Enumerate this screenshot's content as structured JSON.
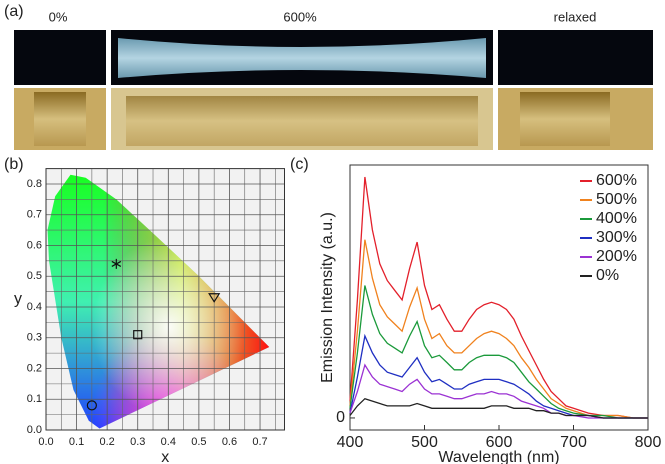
{
  "photos": {
    "label": "(a)",
    "captions": [
      "0%",
      "600%",
      "relaxed"
    ]
  },
  "chart_data": [
    {
      "type": "scatter",
      "panel_label": "(b)",
      "x_label": "x",
      "y_label": "y",
      "x": [
        0.15,
        0.23,
        0.3,
        0.55
      ],
      "values": [
        0.08,
        0.54,
        0.31,
        0.43
      ],
      "markers": [
        "circle",
        "star",
        "square",
        "triangle"
      ],
      "color": "#111111",
      "xlim": [
        0,
        0.78
      ],
      "ylim": [
        0,
        0.85
      ],
      "xticks": [
        {
          "value": 0,
          "label": "0.0"
        },
        0.1,
        0.2,
        0.3,
        0.4,
        0.5,
        0.6,
        0.7
      ],
      "yticks": [
        {
          "value": 0,
          "label": "0.0"
        },
        0.1,
        0.2,
        0.3,
        0.4,
        0.5,
        0.6,
        0.7,
        0.8
      ],
      "grid": true
    },
    {
      "type": "line",
      "panel_label": "(c)",
      "x_label": "Wavelength (nm)",
      "y_label": "Emission Intensity (a.u.)",
      "x": [
        400,
        410,
        420,
        430,
        440,
        450,
        460,
        470,
        480,
        490,
        500,
        510,
        520,
        530,
        540,
        550,
        560,
        570,
        580,
        590,
        600,
        610,
        620,
        630,
        640,
        650,
        660,
        670,
        680,
        690,
        700,
        720,
        740,
        760,
        780,
        800
      ],
      "series": [
        {
          "name": "600%",
          "color": "#e3202b",
          "values": [
            0.07,
            0.49,
            1.0,
            0.78,
            0.64,
            0.57,
            0.53,
            0.49,
            0.62,
            0.73,
            0.55,
            0.45,
            0.47,
            0.41,
            0.36,
            0.36,
            0.41,
            0.45,
            0.47,
            0.48,
            0.47,
            0.45,
            0.41,
            0.34,
            0.28,
            0.22,
            0.16,
            0.11,
            0.08,
            0.05,
            0.04,
            0.02,
            0.01,
            0.01,
            0,
            0
          ]
        },
        {
          "name": "500%",
          "color": "#f0821e",
          "values": [
            0.05,
            0.36,
            0.74,
            0.58,
            0.47,
            0.42,
            0.39,
            0.36,
            0.46,
            0.54,
            0.41,
            0.33,
            0.35,
            0.3,
            0.27,
            0.27,
            0.3,
            0.33,
            0.35,
            0.36,
            0.35,
            0.33,
            0.3,
            0.25,
            0.21,
            0.16,
            0.12,
            0.08,
            0.06,
            0.04,
            0.03,
            0.01,
            0.01,
            0.01,
            0,
            0
          ]
        },
        {
          "name": "400%",
          "color": "#1b9a3b",
          "values": [
            0.04,
            0.27,
            0.55,
            0.43,
            0.35,
            0.31,
            0.29,
            0.27,
            0.34,
            0.4,
            0.3,
            0.25,
            0.26,
            0.23,
            0.2,
            0.2,
            0.23,
            0.25,
            0.26,
            0.26,
            0.26,
            0.25,
            0.23,
            0.19,
            0.15,
            0.12,
            0.09,
            0.06,
            0.04,
            0.03,
            0.02,
            0.01,
            0.01,
            0,
            0,
            0
          ]
        },
        {
          "name": "300%",
          "color": "#1f2fc2",
          "values": [
            0.02,
            0.17,
            0.34,
            0.27,
            0.22,
            0.19,
            0.18,
            0.17,
            0.21,
            0.25,
            0.19,
            0.15,
            0.16,
            0.14,
            0.12,
            0.12,
            0.14,
            0.15,
            0.16,
            0.16,
            0.16,
            0.15,
            0.14,
            0.12,
            0.1,
            0.07,
            0.05,
            0.04,
            0.03,
            0.02,
            0.01,
            0.01,
            0,
            0,
            0,
            0
          ]
        },
        {
          "name": "200%",
          "color": "#9b32d3",
          "values": [
            0.02,
            0.11,
            0.22,
            0.17,
            0.14,
            0.13,
            0.12,
            0.11,
            0.14,
            0.16,
            0.12,
            0.1,
            0.1,
            0.09,
            0.08,
            0.08,
            0.09,
            0.1,
            0.1,
            0.11,
            0.1,
            0.1,
            0.09,
            0.07,
            0.06,
            0.05,
            0.04,
            0.02,
            0.02,
            0.01,
            0.01,
            0,
            0,
            0,
            0,
            0
          ]
        },
        {
          "name": "0%",
          "color": "#222222",
          "values": [
            0.01,
            0.05,
            0.08,
            0.07,
            0.06,
            0.05,
            0.05,
            0.05,
            0.05,
            0.06,
            0.05,
            0.04,
            0.04,
            0.04,
            0.04,
            0.04,
            0.04,
            0.04,
            0.04,
            0.05,
            0.05,
            0.05,
            0.04,
            0.04,
            0.04,
            0.03,
            0.03,
            0.02,
            0.02,
            0.01,
            0.01,
            0.01,
            0,
            0,
            0,
            0
          ]
        }
      ],
      "xlim": [
        400,
        800
      ],
      "ylim": [
        -0.05,
        1.05
      ],
      "xticks": [
        400,
        500,
        600,
        700,
        800
      ],
      "yticks": [
        0
      ],
      "legend": "upper-right"
    }
  ]
}
